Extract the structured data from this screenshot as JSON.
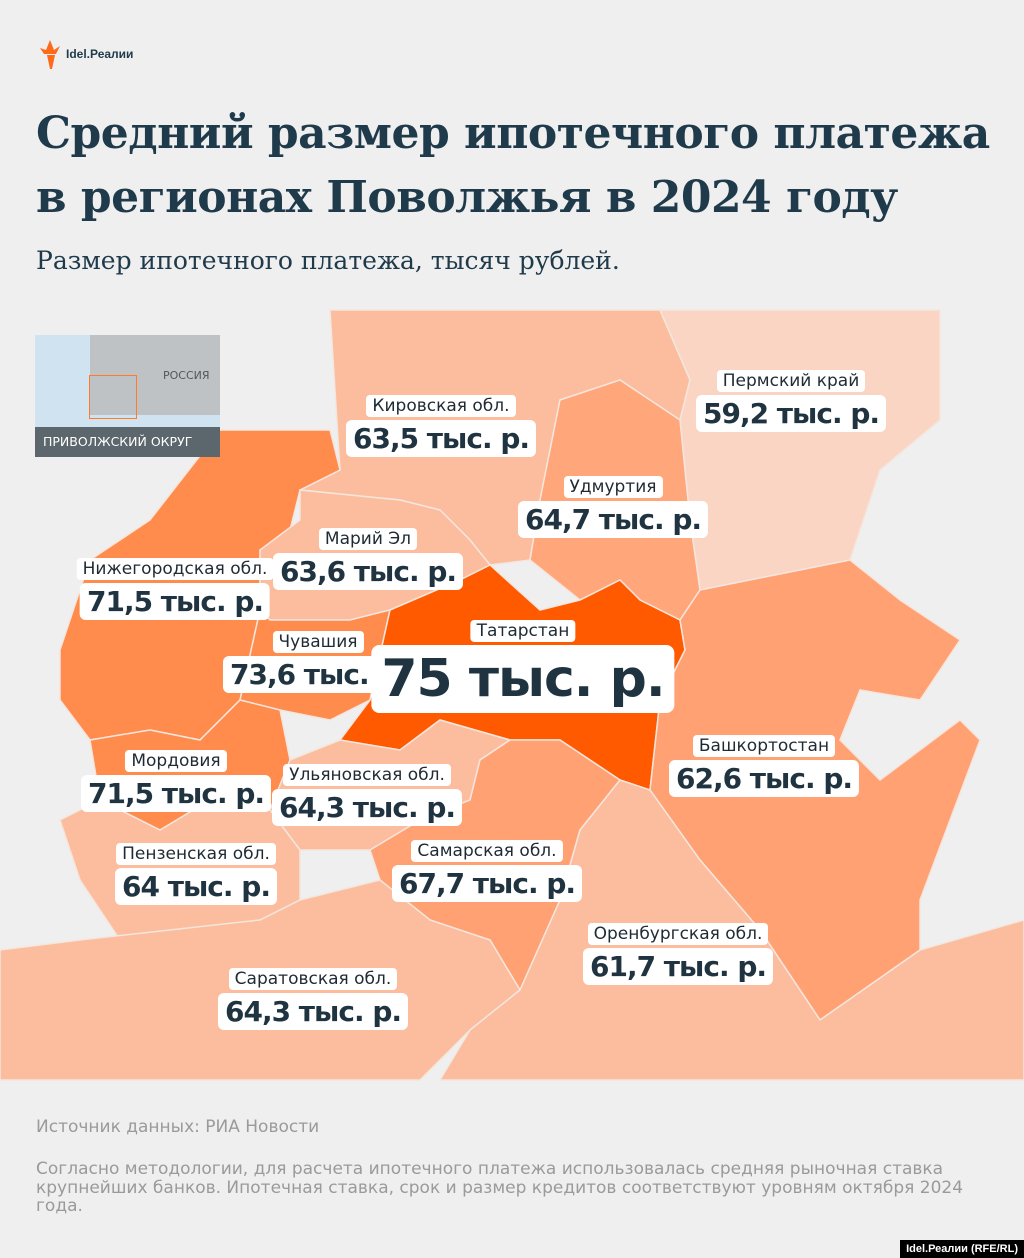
{
  "logo": "Idel.Реалии",
  "title": "Средний размер ипотечного платежа в регионах Поволжья в 2024 году",
  "subtitle": "Размер ипотечного платежа, тысяч рублей.",
  "inset": {
    "country": "РОССИЯ",
    "district": "ПРИВОЛЖСКИЙ ОКРУГ"
  },
  "colors": {
    "highest": "#ff5a00",
    "high": "#ff8b4c",
    "mid": "#ffa172",
    "low": "#fbbd9d",
    "lowest": "#fbd5c3",
    "background": "#efefef"
  },
  "regions": [
    {
      "name": "Кировская обл.",
      "value": "63,5 тыс. р."
    },
    {
      "name": "Пермский край",
      "value": "59,2 тыс. р."
    },
    {
      "name": "Удмуртия",
      "value": "64,7 тыс. р."
    },
    {
      "name": "Марий Эл",
      "value": "63,6 тыс. р."
    },
    {
      "name": "Нижегородская обл.",
      "value": "71,5 тыс. р."
    },
    {
      "name": "Чувашия",
      "value": "73,6 тыс. р."
    },
    {
      "name": "Татарстан",
      "value": "75 тыс. р."
    },
    {
      "name": "Башкортостан",
      "value": "62,6 тыс. р."
    },
    {
      "name": "Мордовия",
      "value": "71,5 тыс. р."
    },
    {
      "name": "Ульяновская обл.",
      "value": "64,3 тыс. р."
    },
    {
      "name": "Пензенская обл.",
      "value": "64 тыс. р."
    },
    {
      "name": "Самарская обл.",
      "value": "67,7 тыс. р."
    },
    {
      "name": "Оренбургская обл.",
      "value": "61,7 тыс. р."
    },
    {
      "name": "Саратовская обл.",
      "value": "64,3 тыс. р."
    }
  ],
  "source": "Источник данных: РИА Новости",
  "note": "Согласно методологии, для расчета ипотечного платежа использовалась средняя рыночная ставка крупнейших банков. Ипотечная ставка, срок и размер кредитов соответствуют уровням октября 2024 года.",
  "credit": "Idel.Реалии (RFE/RL)"
}
